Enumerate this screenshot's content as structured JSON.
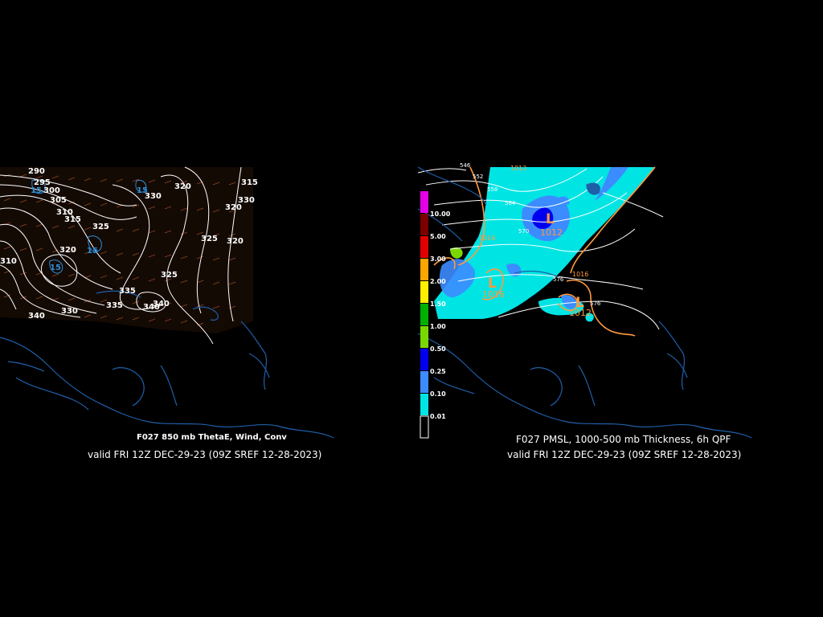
{
  "left_panel": {
    "title": "F027 850 mb ThetaE, Wind, Conv",
    "valid": "valid FRI 12Z DEC-29-23 (09Z SREF 12-28-2023)",
    "thetae_labels": [
      "290",
      "295",
      "300",
      "305",
      "310",
      "315",
      "320",
      "325",
      "330",
      "335",
      "340",
      "310",
      "320",
      "325",
      "330",
      "315",
      "320",
      "320",
      "325",
      "330",
      "340",
      "335",
      "340",
      "15",
      "15",
      "15",
      "15"
    ]
  },
  "right_panel": {
    "title": "F027 PMSL, 1000-500 mb Thickness, 6h QPF",
    "valid": "valid FRI 12Z DEC-29-23 (09Z SREF 12-28-2023)",
    "qpf_legend": [
      "10.00",
      "5.00",
      "3.00",
      "2.00",
      "1.50",
      "1.00",
      "0.50",
      "0.25",
      "0.10",
      "0.01"
    ],
    "qpf_colors": [
      "#e400e4",
      "#7a0000",
      "#e00000",
      "#ffa500",
      "#ffee00",
      "#00b000",
      "#7ad800",
      "#0000ee",
      "#3c8cff",
      "#00e4e4",
      "#000000"
    ],
    "thickness_labels": [
      "546",
      "552",
      "558",
      "564",
      "570",
      "576",
      "576"
    ],
    "isobar_labels": [
      "1012",
      "1016",
      "1016",
      "1012",
      "1016",
      "1012"
    ],
    "low_markers": [
      "L",
      "L",
      "L"
    ]
  }
}
